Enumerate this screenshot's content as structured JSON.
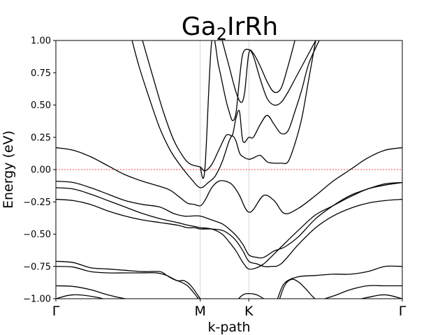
{
  "chart_data": {
    "type": "line",
    "title": {
      "base": "Ga",
      "sub": "2",
      "rest": "IrRh"
    },
    "xlabel": "k-path",
    "ylabel": "Energy (eV)",
    "ylim": [
      -1.0,
      1.0
    ],
    "yticks": [
      "-1.00",
      "-0.75",
      "-0.50",
      "-0.25",
      "0.00",
      "0.25",
      "0.50",
      "0.75",
      "1.00"
    ],
    "kpoints": [
      {
        "label": "Γ",
        "x": 0.0
      },
      {
        "label": "M",
        "x": 0.4167
      },
      {
        "label": "K",
        "x": 0.5569
      },
      {
        "label": "Γ",
        "x": 1.0
      }
    ],
    "grid_x": true,
    "fermi_level": {
      "y": 0.0,
      "color": "#ff0000",
      "style": "dashed"
    },
    "line_color": "#000000",
    "series": [
      {
        "x": [
          0.0,
          0.05,
          0.12,
          0.2,
          0.3,
          0.38,
          0.4167,
          0.45,
          0.5,
          0.5569,
          0.6,
          0.7,
          0.8,
          0.9,
          0.95,
          1.0
        ],
        "values": [
          -1.0,
          -0.97,
          -0.99,
          -1.05,
          -1.1,
          -1.1,
          -1.1,
          -1.1,
          -1.1,
          -1.1,
          -1.1,
          -1.1,
          -1.05,
          -0.99,
          -0.97,
          -1.0
        ]
      },
      {
        "x": [
          0.0,
          0.05,
          0.1,
          0.15,
          0.2,
          0.25,
          0.3,
          0.36,
          0.38,
          0.4,
          0.4167
        ],
        "values": [
          -0.9,
          -0.905,
          -0.93,
          -0.97,
          -1.0,
          -1.02,
          -1.03,
          -1.05,
          -1.06,
          -1.07,
          -1.08
        ]
      },
      {
        "x": [
          0.0,
          0.05,
          0.1,
          0.15,
          0.2,
          0.25,
          0.29,
          0.32,
          0.35,
          0.37,
          0.39,
          0.4167
        ],
        "values": [
          -0.75,
          -0.755,
          -0.79,
          -0.8,
          -0.8,
          -0.8,
          -0.8,
          -0.82,
          -0.86,
          -0.86,
          -0.9,
          -1.0
        ]
      },
      {
        "x": [
          0.0,
          0.05,
          0.1,
          0.15,
          0.2,
          0.25,
          0.3,
          0.32,
          0.34,
          0.36,
          0.38,
          0.4,
          0.4167
        ],
        "values": [
          -0.71,
          -0.72,
          -0.76,
          -0.77,
          -0.78,
          -0.79,
          -0.79,
          -0.82,
          -0.85,
          -0.87,
          -0.9,
          -0.96,
          -1.02
        ]
      },
      {
        "x": [
          0.52,
          0.54,
          0.5569,
          0.58,
          0.6,
          0.62
        ],
        "values": [
          -1.02,
          -0.97,
          -0.96,
          -0.97,
          -1.0,
          -1.03
        ]
      },
      {
        "x": [
          0.64,
          0.66,
          0.68,
          0.7,
          0.72,
          0.74,
          0.76
        ],
        "values": [
          -1.05,
          -0.9,
          -0.85,
          -0.87,
          -0.92,
          -0.98,
          -1.03
        ]
      },
      {
        "x": [
          0.64,
          0.66,
          0.7,
          0.75,
          0.8,
          0.85,
          0.9,
          0.95,
          1.0
        ],
        "values": [
          -1.0,
          -0.88,
          -0.83,
          -0.82,
          -0.81,
          -0.81,
          -0.79,
          -0.75,
          -0.75
        ]
      },
      {
        "x": [
          0.7,
          0.75,
          0.8,
          0.85,
          0.9,
          0.95,
          1.0
        ],
        "values": [
          -1.05,
          -1.02,
          -0.98,
          -0.93,
          -0.9,
          -0.9,
          -0.9
        ]
      },
      {
        "x": [
          0.0,
          0.05,
          0.1,
          0.15,
          0.2,
          0.25,
          0.3,
          0.35,
          0.38,
          0.4,
          0.4167,
          0.45,
          0.48,
          0.5,
          0.52,
          0.54,
          0.5569,
          0.58,
          0.6,
          0.62,
          0.65,
          0.7,
          0.75,
          0.8,
          0.85,
          0.9,
          0.95,
          1.0
        ],
        "values": [
          -0.23,
          -0.24,
          -0.27,
          -0.32,
          -0.36,
          -0.39,
          -0.41,
          -0.43,
          -0.45,
          -0.45,
          -0.46,
          -0.46,
          -0.47,
          -0.5,
          -0.55,
          -0.63,
          -0.71,
          -0.73,
          -0.75,
          -0.75,
          -0.73,
          -0.58,
          -0.45,
          -0.36,
          -0.3,
          -0.26,
          -0.24,
          -0.23
        ]
      },
      {
        "x": [
          0.0,
          0.05,
          0.1,
          0.15,
          0.2,
          0.25,
          0.3,
          0.35,
          0.38,
          0.4,
          0.4167,
          0.45,
          0.48,
          0.5,
          0.52,
          0.54,
          0.5569,
          0.58,
          0.6,
          0.62,
          0.65,
          0.7,
          0.75,
          0.8,
          0.85,
          0.9,
          0.95,
          1.0
        ],
        "values": [
          -0.14,
          -0.15,
          -0.19,
          -0.24,
          -0.29,
          -0.34,
          -0.38,
          -0.41,
          -0.43,
          -0.44,
          -0.45,
          -0.46,
          -0.5,
          -0.56,
          -0.63,
          -0.72,
          -0.77,
          -0.76,
          -0.73,
          -0.68,
          -0.6,
          -0.47,
          -0.35,
          -0.28,
          -0.21,
          -0.15,
          -0.12,
          -0.1
        ]
      },
      {
        "x": [
          0.0,
          0.05,
          0.1,
          0.15,
          0.2,
          0.25,
          0.3,
          0.34,
          0.37,
          0.39,
          0.4167,
          0.45,
          0.48,
          0.5,
          0.52,
          0.54,
          0.5569,
          0.58,
          0.6,
          0.63,
          0.66,
          0.7,
          0.75,
          0.8,
          0.85,
          0.9,
          0.95,
          1.0
        ],
        "values": [
          -0.09,
          -0.1,
          -0.14,
          -0.19,
          -0.24,
          -0.27,
          -0.29,
          -0.34,
          -0.36,
          -0.36,
          -0.36,
          -0.39,
          -0.42,
          -0.46,
          -0.51,
          -0.58,
          -0.66,
          -0.68,
          -0.68,
          -0.63,
          -0.6,
          -0.52,
          -0.38,
          -0.28,
          -0.2,
          -0.15,
          -0.11,
          -0.1
        ]
      },
      {
        "x": [
          0.0,
          0.05,
          0.1,
          0.15,
          0.2,
          0.25,
          0.3,
          0.33,
          0.36,
          0.38,
          0.4,
          0.4167,
          0.43,
          0.45,
          0.47,
          0.49,
          0.51,
          0.53,
          0.545,
          0.5569,
          0.57,
          0.6,
          0.63,
          0.66,
          0.7,
          0.75,
          0.8,
          0.85,
          0.9,
          0.95,
          1.0
        ],
        "values": [
          0.17,
          0.15,
          0.1,
          0.03,
          -0.04,
          -0.09,
          -0.13,
          -0.16,
          -0.22,
          -0.26,
          -0.27,
          -0.28,
          -0.24,
          -0.14,
          -0.09,
          -0.09,
          -0.12,
          -0.2,
          -0.29,
          -0.33,
          -0.31,
          -0.2,
          -0.24,
          -0.34,
          -0.3,
          -0.2,
          -0.09,
          0.0,
          0.09,
          0.15,
          0.17
        ]
      },
      {
        "x": [
          0.22,
          0.24,
          0.27,
          0.3,
          0.33,
          0.36,
          0.39,
          0.4167,
          0.44,
          0.46,
          0.48,
          0.5,
          0.51,
          0.52,
          0.53,
          0.54,
          0.5569,
          0.57,
          0.59,
          0.61,
          0.63,
          0.65,
          0.67,
          0.69,
          0.71,
          0.73,
          0.75
        ],
        "values": [
          1.0,
          0.8,
          0.55,
          0.32,
          0.15,
          0.03,
          -0.07,
          -0.14,
          -0.1,
          -0.05,
          0.06,
          0.22,
          0.26,
          0.22,
          0.13,
          0.1,
          0.08,
          0.09,
          0.11,
          0.06,
          0.05,
          0.05,
          0.06,
          0.2,
          0.4,
          0.7,
          1.0
        ]
      },
      {
        "x": [
          0.25,
          0.28,
          0.31,
          0.34,
          0.37,
          0.39,
          0.4167,
          0.43,
          0.45,
          0.47,
          0.49,
          0.5,
          0.51,
          0.52,
          0.53,
          0.54,
          0.5569,
          0.57,
          0.59,
          0.61,
          0.63,
          0.65,
          0.67,
          0.69,
          0.71,
          0.73,
          0.76
        ],
        "values": [
          1.0,
          0.72,
          0.45,
          0.23,
          0.09,
          0.04,
          0.02,
          -0.01,
          0.04,
          0.15,
          0.26,
          0.27,
          0.27,
          0.4,
          0.45,
          0.22,
          0.25,
          0.25,
          0.35,
          0.42,
          0.35,
          0.28,
          0.3,
          0.45,
          0.62,
          0.82,
          1.0
        ]
      },
      {
        "x": [
          0.4167,
          0.43,
          0.45,
          0.47,
          0.49,
          0.5,
          0.51,
          0.52,
          0.53,
          0.54,
          0.5569,
          0.57,
          0.59,
          0.61,
          0.63,
          0.65,
          0.67,
          0.69,
          0.71,
          0.73,
          0.75
        ],
        "values": [
          0.02,
          0.0,
          1.0,
          0.8,
          0.55,
          0.45,
          0.38,
          0.44,
          0.7,
          0.9,
          0.93,
          0.88,
          0.7,
          0.55,
          0.5,
          0.52,
          0.6,
          0.7,
          0.8,
          0.9,
          1.0
        ]
      },
      {
        "x": [
          0.48,
          0.5,
          0.52,
          0.535,
          0.545,
          0.5569,
          0.57,
          0.59,
          0.61,
          0.63,
          0.65,
          0.67,
          0.69
        ],
        "values": [
          1.0,
          0.8,
          0.6,
          0.52,
          0.6,
          0.9,
          0.9,
          0.8,
          0.68,
          0.6,
          0.63,
          0.8,
          1.0
        ]
      }
    ]
  }
}
